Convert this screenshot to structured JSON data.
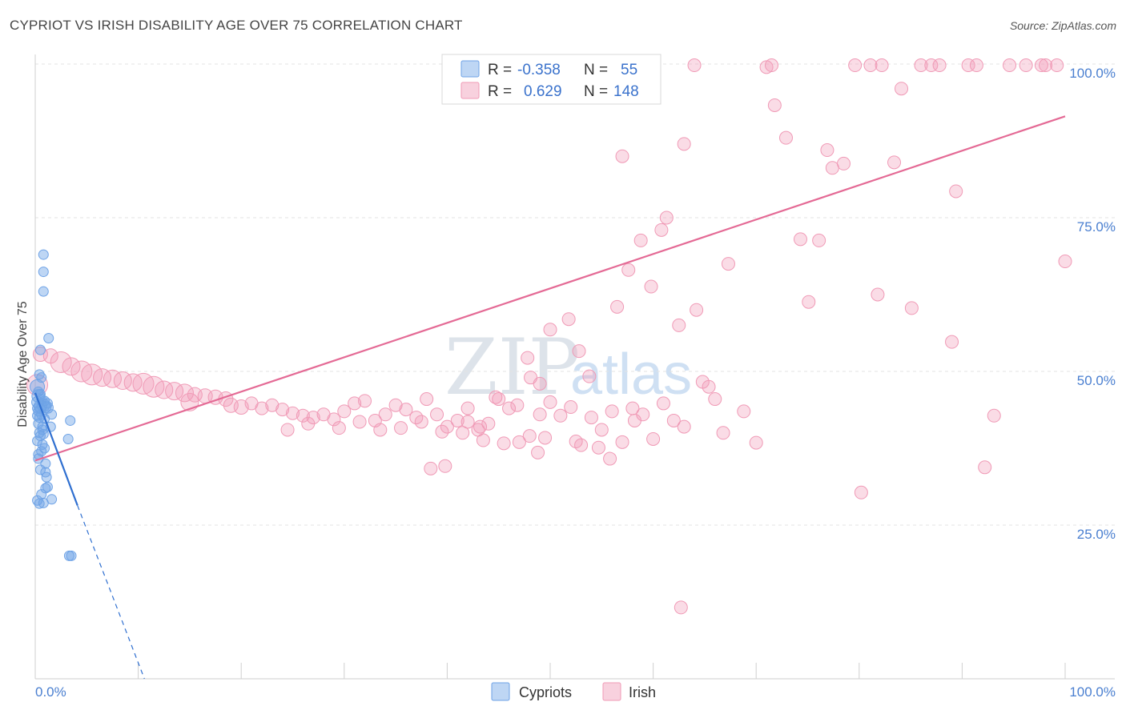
{
  "title": "CYPRIOT VS IRISH DISABILITY AGE OVER 75 CORRELATION CHART",
  "source": "Source: ZipAtlas.com",
  "watermark": {
    "zip": "ZIP",
    "atlas": "atlas"
  },
  "legend": {
    "r_label": "R =",
    "n_label": "N =",
    "rows": [
      {
        "series": "Cypriots",
        "r": "-0.358",
        "n": "55",
        "color": "#6fa3e6"
      },
      {
        "series": "Irish",
        "r": "0.629",
        "n": "148",
        "color": "#f09ab6"
      }
    ]
  },
  "chart_data": {
    "type": "scatter",
    "title": "CYPRIOT VS IRISH DISABILITY AGE OVER 75 CORRELATION CHART",
    "xlabel": "",
    "ylabel": "Disability Age Over 75",
    "xlim": [
      0,
      100
    ],
    "ylim": [
      0,
      100
    ],
    "x_tick_labels": [
      "0.0%",
      "100.0%"
    ],
    "y_tick_labels": [
      "25.0%",
      "50.0%",
      "75.0%",
      "100.0%"
    ],
    "y_ticks": [
      25,
      50,
      75,
      100
    ],
    "bottom_legend": [
      "Cypriots",
      "Irish"
    ],
    "series": [
      {
        "name": "Cypriots",
        "color": "#6fa3e6",
        "trend": {
          "x0": 0,
          "y0": 46.5,
          "x1": 4.1,
          "y1": 28.2,
          "dash_to_x": 10.6,
          "dash_to_y": 0
        },
        "points": [
          [
            0.2,
            47.5,
            9
          ],
          [
            0.3,
            46,
            8
          ],
          [
            0.2,
            45,
            7
          ],
          [
            0.5,
            44.3,
            8
          ],
          [
            0.8,
            44.5,
            8
          ],
          [
            1.0,
            44.2,
            7
          ],
          [
            1.2,
            44.1,
            7
          ],
          [
            0.3,
            43.5,
            6
          ],
          [
            0.6,
            43,
            6
          ],
          [
            0.2,
            42.8,
            6
          ],
          [
            0.4,
            42.5,
            6
          ],
          [
            0.9,
            42.3,
            6
          ],
          [
            0.3,
            41.5,
            6
          ],
          [
            0.7,
            41,
            6
          ],
          [
            1.6,
            43,
            6
          ],
          [
            1.5,
            41,
            6
          ],
          [
            3.4,
            42,
            6
          ],
          [
            0.4,
            40,
            6
          ],
          [
            0.8,
            39.8,
            6
          ],
          [
            0.2,
            38.7,
            6
          ],
          [
            0.7,
            38.1,
            6
          ],
          [
            3.2,
            39,
            6
          ],
          [
            0.6,
            37,
            6
          ],
          [
            0.3,
            35.8,
            6
          ],
          [
            1.0,
            33.6,
            6
          ],
          [
            1.1,
            32.8,
            6
          ],
          [
            1.2,
            31.2,
            6
          ],
          [
            1.0,
            31,
            6
          ],
          [
            0.6,
            30,
            6
          ],
          [
            0.2,
            29,
            6
          ],
          [
            0.4,
            28.5,
            6
          ],
          [
            0.8,
            28.6,
            6
          ],
          [
            1.6,
            29.2,
            6
          ],
          [
            3.3,
            20,
            6
          ],
          [
            3.5,
            20,
            6
          ],
          [
            0.8,
            69,
            6
          ],
          [
            0.8,
            66.2,
            6
          ],
          [
            0.8,
            63,
            6
          ],
          [
            1.3,
            55.4,
            6
          ],
          [
            0.5,
            53.5,
            6
          ],
          [
            0.4,
            49.5,
            6
          ],
          [
            0.6,
            49,
            6
          ],
          [
            0.3,
            46.7,
            6
          ],
          [
            0.5,
            46.3,
            6
          ],
          [
            0.6,
            45.5,
            6
          ],
          [
            0.9,
            45.2,
            6
          ],
          [
            1.2,
            44.8,
            6
          ],
          [
            0.2,
            44,
            6
          ],
          [
            0.5,
            43.9,
            6
          ],
          [
            0.7,
            40.5,
            6
          ],
          [
            0.5,
            39.5,
            6
          ],
          [
            0.9,
            37.5,
            6
          ],
          [
            0.3,
            36.5,
            6
          ],
          [
            1.0,
            35,
            6
          ],
          [
            0.5,
            34,
            6
          ]
        ]
      },
      {
        "name": "Irish",
        "color": "#f09ab6",
        "trend": {
          "x0": 0,
          "y0": 35.5,
          "x1": 100,
          "y1": 91.5
        },
        "points": [
          [
            0.2,
            47.8,
            13
          ],
          [
            0.5,
            52.8,
            9
          ],
          [
            1.5,
            52.5,
            9
          ],
          [
            2.5,
            51.5,
            13
          ],
          [
            3.5,
            50.8,
            11
          ],
          [
            4.5,
            50,
            13
          ],
          [
            5.5,
            49.5,
            13
          ],
          [
            6.5,
            49,
            11
          ],
          [
            7.5,
            48.8,
            11
          ],
          [
            8.5,
            48.5,
            11
          ],
          [
            9.5,
            48.2,
            11
          ],
          [
            10.5,
            48,
            13
          ],
          [
            11.5,
            47.5,
            13
          ],
          [
            12.5,
            47,
            11
          ],
          [
            13.5,
            46.8,
            11
          ],
          [
            14.5,
            46.5,
            11
          ],
          [
            15.5,
            46.2,
            9
          ],
          [
            16.5,
            46,
            9
          ],
          [
            17.5,
            45.8,
            9
          ],
          [
            18.5,
            45.5,
            9
          ],
          [
            15,
            45,
            11
          ],
          [
            19,
            44.5,
            9
          ],
          [
            20,
            44.2,
            9
          ],
          [
            21,
            44.8,
            8
          ],
          [
            22,
            44,
            8
          ],
          [
            23,
            44.5,
            8
          ],
          [
            24,
            43.8,
            8
          ],
          [
            25,
            43.2,
            8
          ],
          [
            26,
            42.8,
            8
          ],
          [
            27,
            42.5,
            8
          ],
          [
            28,
            43,
            8
          ],
          [
            29,
            42.2,
            8
          ],
          [
            30,
            43.5,
            8
          ],
          [
            31,
            44.8,
            8
          ],
          [
            32,
            45.2,
            8
          ],
          [
            33,
            42,
            8
          ],
          [
            34,
            43,
            8
          ],
          [
            35,
            44.5,
            8
          ],
          [
            36,
            43.8,
            8
          ],
          [
            37,
            42.5,
            8
          ],
          [
            38,
            45.5,
            8
          ],
          [
            39,
            43,
            8
          ],
          [
            40,
            41,
            8
          ],
          [
            41,
            42,
            8
          ],
          [
            42,
            44,
            8
          ],
          [
            43,
            40.5,
            8
          ],
          [
            44,
            41.5,
            8
          ],
          [
            45,
            45.5,
            8
          ],
          [
            46,
            44,
            8
          ],
          [
            47,
            38.5,
            8
          ],
          [
            48,
            39.5,
            8
          ],
          [
            49,
            43,
            8
          ],
          [
            50,
            45,
            8
          ],
          [
            51,
            42.8,
            8
          ],
          [
            52,
            44.2,
            8
          ],
          [
            53,
            38,
            8
          ],
          [
            54,
            42.5,
            8
          ],
          [
            55,
            40.5,
            8
          ],
          [
            56,
            43.5,
            8
          ],
          [
            57,
            38.5,
            8
          ],
          [
            58,
            44,
            8
          ],
          [
            59,
            43,
            8
          ],
          [
            60,
            39,
            8
          ],
          [
            61,
            44.8,
            8
          ],
          [
            62,
            42,
            8
          ],
          [
            63,
            41,
            8
          ],
          [
            24.5,
            40.5,
            8
          ],
          [
            26.5,
            41.5,
            8
          ],
          [
            29.5,
            40.8,
            8
          ],
          [
            31.5,
            41.8,
            8
          ],
          [
            33.5,
            40.5,
            8
          ],
          [
            35.5,
            40.8,
            8
          ],
          [
            37.5,
            41.8,
            8
          ],
          [
            39.5,
            40.2,
            8
          ],
          [
            41.5,
            40,
            8
          ],
          [
            43.5,
            38.8,
            8
          ],
          [
            45.5,
            38.3,
            8
          ],
          [
            38.4,
            34.2,
            8
          ],
          [
            39.8,
            34.6,
            8
          ],
          [
            47.8,
            52.2,
            8
          ],
          [
            48.1,
            49,
            8
          ],
          [
            49,
            48,
            8
          ],
          [
            51.8,
            58.5,
            8
          ],
          [
            52.8,
            53.3,
            8
          ],
          [
            53.8,
            49.2,
            8
          ],
          [
            56.5,
            60.5,
            8
          ],
          [
            57.6,
            66.5,
            8
          ],
          [
            58.8,
            71.3,
            8
          ],
          [
            59.8,
            63.8,
            8
          ],
          [
            60.8,
            73,
            8
          ],
          [
            61.3,
            75,
            8
          ],
          [
            62.5,
            57.5,
            8
          ],
          [
            63,
            87,
            8
          ],
          [
            64.2,
            60,
            8
          ],
          [
            64.8,
            48.3,
            8
          ],
          [
            65.4,
            47.5,
            8
          ],
          [
            66,
            45.5,
            8
          ],
          [
            66.8,
            40,
            8
          ],
          [
            67.3,
            67.5,
            8
          ],
          [
            68.8,
            43.5,
            8
          ],
          [
            70,
            38.4,
            8
          ],
          [
            71,
            99.5,
            8
          ],
          [
            71.8,
            93.3,
            8
          ],
          [
            72.9,
            88,
            8
          ],
          [
            74.3,
            71.5,
            8
          ],
          [
            75.1,
            61.3,
            8
          ],
          [
            76.1,
            71.3,
            8
          ],
          [
            76.9,
            86,
            8
          ],
          [
            77.4,
            83.1,
            8
          ],
          [
            78.5,
            83.8,
            8
          ],
          [
            79.6,
            99.8,
            8
          ],
          [
            80.2,
            30.3,
            8
          ],
          [
            81.1,
            99.8,
            8
          ],
          [
            81.8,
            62.5,
            8
          ],
          [
            82.2,
            99.8,
            8
          ],
          [
            83.4,
            84,
            8
          ],
          [
            84.1,
            96,
            8
          ],
          [
            85.1,
            60.3,
            8
          ],
          [
            86,
            99.8,
            8
          ],
          [
            87,
            99.8,
            8
          ],
          [
            87.8,
            99.8,
            8
          ],
          [
            89,
            54.8,
            8
          ],
          [
            89.4,
            79.3,
            8
          ],
          [
            90.6,
            99.8,
            8
          ],
          [
            91.4,
            99.8,
            8
          ],
          [
            92.2,
            34.4,
            8
          ],
          [
            93.1,
            42.8,
            8
          ],
          [
            94.6,
            99.8,
            8
          ],
          [
            96.2,
            99.8,
            8
          ],
          [
            97.7,
            99.8,
            8
          ],
          [
            98.1,
            99.8,
            8
          ],
          [
            99.2,
            99.8,
            8
          ],
          [
            100,
            67.9,
            8
          ],
          [
            71.5,
            99.8,
            8
          ],
          [
            64,
            99.8,
            8
          ],
          [
            62.7,
            11.6,
            8
          ],
          [
            57,
            85,
            8
          ],
          [
            50,
            56.8,
            8
          ],
          [
            44.7,
            45.8,
            8
          ],
          [
            43.2,
            41,
            8
          ],
          [
            42,
            41.8,
            8
          ],
          [
            46.8,
            44.5,
            8
          ],
          [
            49.5,
            39.2,
            8
          ],
          [
            52.5,
            38.6,
            8
          ],
          [
            54.7,
            37.6,
            8
          ],
          [
            48.8,
            36.8,
            8
          ],
          [
            55.8,
            35.8,
            8
          ],
          [
            58.2,
            42,
            8
          ]
        ]
      }
    ]
  }
}
